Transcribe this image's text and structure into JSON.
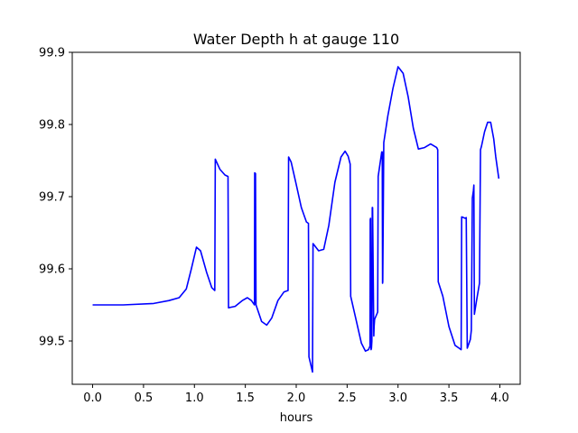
{
  "chart_data": {
    "type": "line",
    "title": "Water Depth h at gauge 110",
    "xlabel": "hours",
    "ylabel": "",
    "xlim": [
      -0.2,
      4.2
    ],
    "ylim": [
      99.44,
      99.9
    ],
    "xticks": [
      0.0,
      0.5,
      1.0,
      1.5,
      2.0,
      2.5,
      3.0,
      3.5,
      4.0
    ],
    "xtick_labels": [
      "0.0",
      "0.5",
      "1.0",
      "1.5",
      "2.0",
      "2.5",
      "3.0",
      "3.5",
      "4.0"
    ],
    "yticks": [
      99.5,
      99.6,
      99.7,
      99.8,
      99.9
    ],
    "ytick_labels": [
      "99.5",
      "99.6",
      "99.7",
      "99.8",
      "99.9"
    ],
    "grid": false,
    "series": [
      {
        "color": "#0000ff",
        "x": [
          0.0,
          0.3,
          0.6,
          0.75,
          0.85,
          0.92,
          0.97,
          1.02,
          1.06,
          1.12,
          1.17,
          1.2,
          1.205,
          1.25,
          1.3,
          1.33,
          1.335,
          1.4,
          1.47,
          1.52,
          1.56,
          1.59,
          1.592,
          1.6,
          1.605,
          1.66,
          1.71,
          1.76,
          1.82,
          1.88,
          1.92,
          1.925,
          1.95,
          2.0,
          2.05,
          2.1,
          2.12,
          2.125,
          2.16,
          2.165,
          2.22,
          2.27,
          2.32,
          2.38,
          2.44,
          2.48,
          2.51,
          2.53,
          2.535,
          2.59,
          2.64,
          2.68,
          2.71,
          2.725,
          2.727,
          2.73,
          2.735,
          2.739,
          2.743,
          2.747,
          2.75,
          2.762,
          2.765,
          2.77,
          2.8,
          2.805,
          2.84,
          2.845,
          2.848,
          2.85,
          2.86,
          2.9,
          2.95,
          3.0,
          3.05,
          3.1,
          3.15,
          3.2,
          3.26,
          3.32,
          3.38,
          3.39,
          3.395,
          3.44,
          3.5,
          3.56,
          3.62,
          3.625,
          3.66,
          3.67,
          3.68,
          3.71,
          3.72,
          3.73,
          3.74,
          3.745,
          3.75,
          3.77,
          3.8,
          3.81,
          3.82,
          3.85,
          3.88,
          3.91,
          3.94,
          3.96,
          3.99
        ],
        "y": [
          99.55,
          99.55,
          99.552,
          99.556,
          99.56,
          99.572,
          99.6,
          99.63,
          99.625,
          99.595,
          99.574,
          99.57,
          99.752,
          99.738,
          99.73,
          99.728,
          99.546,
          99.548,
          99.556,
          99.56,
          99.556,
          99.55,
          99.733,
          99.732,
          99.55,
          99.527,
          99.522,
          99.532,
          99.556,
          99.568,
          99.57,
          99.755,
          99.748,
          99.717,
          99.685,
          99.665,
          99.663,
          99.478,
          99.457,
          99.635,
          99.625,
          99.627,
          99.66,
          99.72,
          99.755,
          99.763,
          99.756,
          99.745,
          99.562,
          99.528,
          99.497,
          99.486,
          99.488,
          99.493,
          99.668,
          99.67,
          99.488,
          99.49,
          99.5,
          99.685,
          99.685,
          99.507,
          99.52,
          99.53,
          99.54,
          99.728,
          99.762,
          99.762,
          99.58,
          99.582,
          99.775,
          99.812,
          99.85,
          99.88,
          99.871,
          99.838,
          99.795,
          99.766,
          99.768,
          99.773,
          99.768,
          99.765,
          99.582,
          99.562,
          99.52,
          99.494,
          99.488,
          99.672,
          99.67,
          99.671,
          99.49,
          99.502,
          99.515,
          99.698,
          99.708,
          99.716,
          99.537,
          99.555,
          99.58,
          99.765,
          99.77,
          99.79,
          99.803,
          99.803,
          99.78,
          99.755,
          99.725
        ]
      }
    ]
  }
}
